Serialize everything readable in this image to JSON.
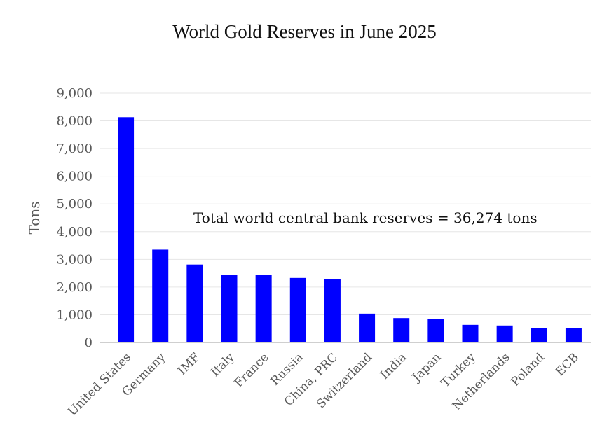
{
  "chart_data": {
    "type": "bar",
    "title": "World Gold Reserves in June 2025",
    "xlabel": "",
    "ylabel": "Tons",
    "ylim": [
      0,
      9000
    ],
    "yticks": [
      0,
      1000,
      2000,
      3000,
      4000,
      5000,
      6000,
      7000,
      8000,
      9000
    ],
    "ytick_labels": [
      "0",
      "1,000",
      "2,000",
      "3,000",
      "4,000",
      "5,000",
      "6,000",
      "7,000",
      "8,000",
      "9,000"
    ],
    "categories": [
      "United States",
      "Germany",
      "IMF",
      "Italy",
      "France",
      "Russia",
      "China, PRC",
      "Switzerland",
      "India",
      "Japan",
      "Turkey",
      "Netherlands",
      "Poland",
      "ECB"
    ],
    "values": [
      8133,
      3351,
      2814,
      2452,
      2437,
      2330,
      2299,
      1040,
      880,
      846,
      636,
      612,
      515,
      507
    ],
    "bar_color": "#0000ff",
    "grid": true,
    "annotation": "Total world central bank reserves = 36,274 tons"
  }
}
